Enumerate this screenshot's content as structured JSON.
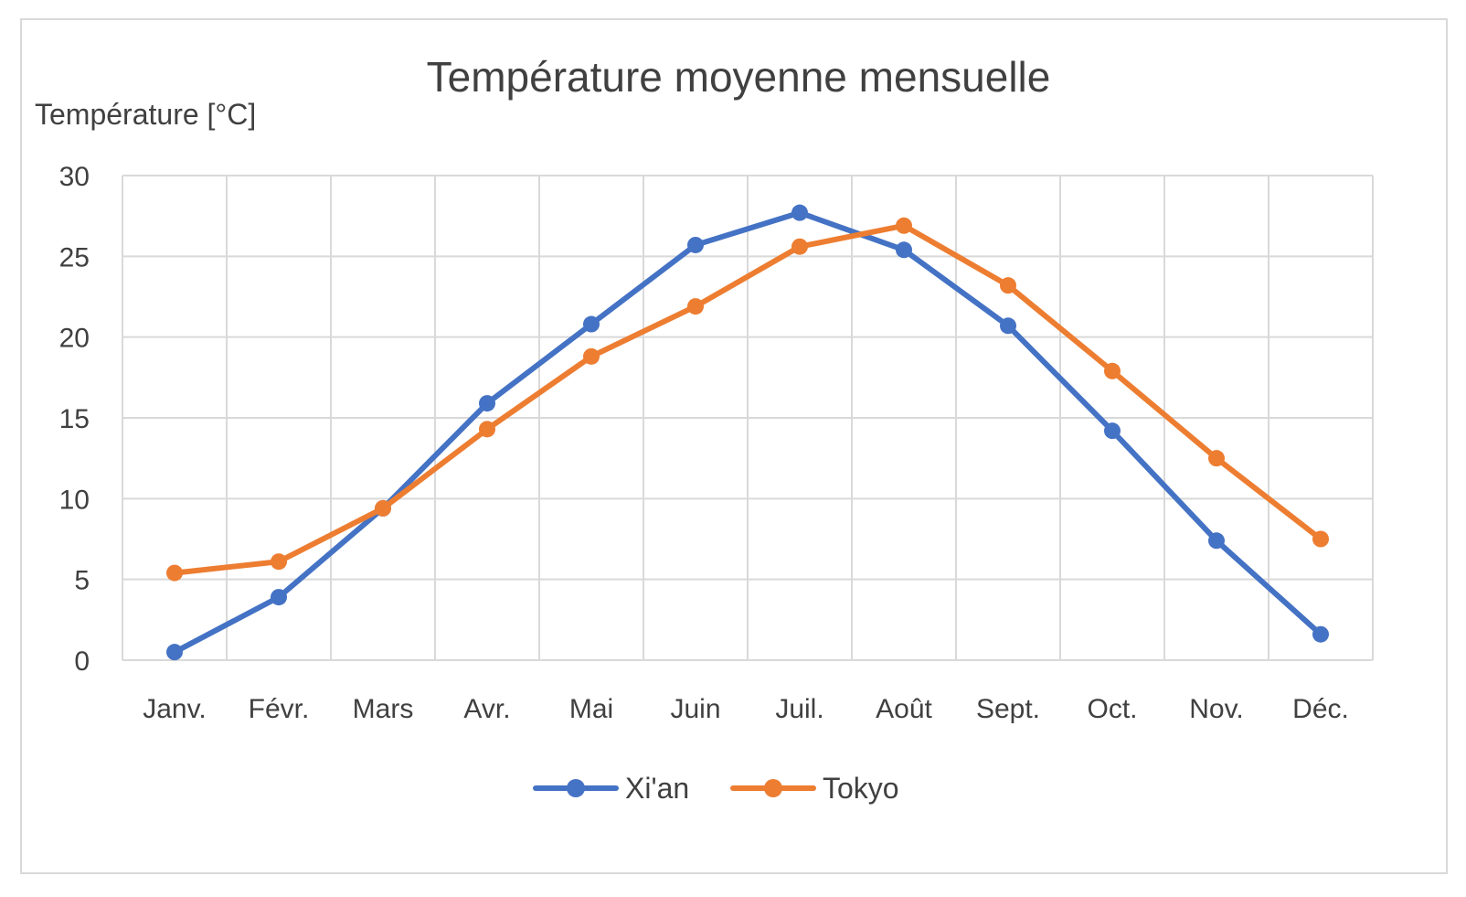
{
  "chart_data": {
    "type": "line",
    "title": "Température moyenne mensuelle",
    "ylabel": "Température [°C]",
    "xlabel": "",
    "categories": [
      "Janv.",
      "Févr.",
      "Mars",
      "Avr.",
      "Mai",
      "Juin",
      "Juil.",
      "Août",
      "Sept.",
      "Oct.",
      "Nov.",
      "Déc."
    ],
    "yticks": [
      "0",
      "5",
      "10",
      "15",
      "20",
      "25",
      "30"
    ],
    "ylim": [
      0,
      30
    ],
    "grid": true,
    "legend": "bottom",
    "series": [
      {
        "name": "Xi'an",
        "color": "#4472C4",
        "values": [
          0.5,
          3.9,
          9.4,
          15.9,
          20.8,
          25.7,
          27.7,
          25.4,
          20.7,
          14.2,
          7.4,
          1.6
        ]
      },
      {
        "name": "Tokyo",
        "color": "#ED7D31",
        "values": [
          5.4,
          6.1,
          9.4,
          14.3,
          18.8,
          21.9,
          25.6,
          26.9,
          23.2,
          17.9,
          12.5,
          7.5
        ]
      }
    ]
  }
}
